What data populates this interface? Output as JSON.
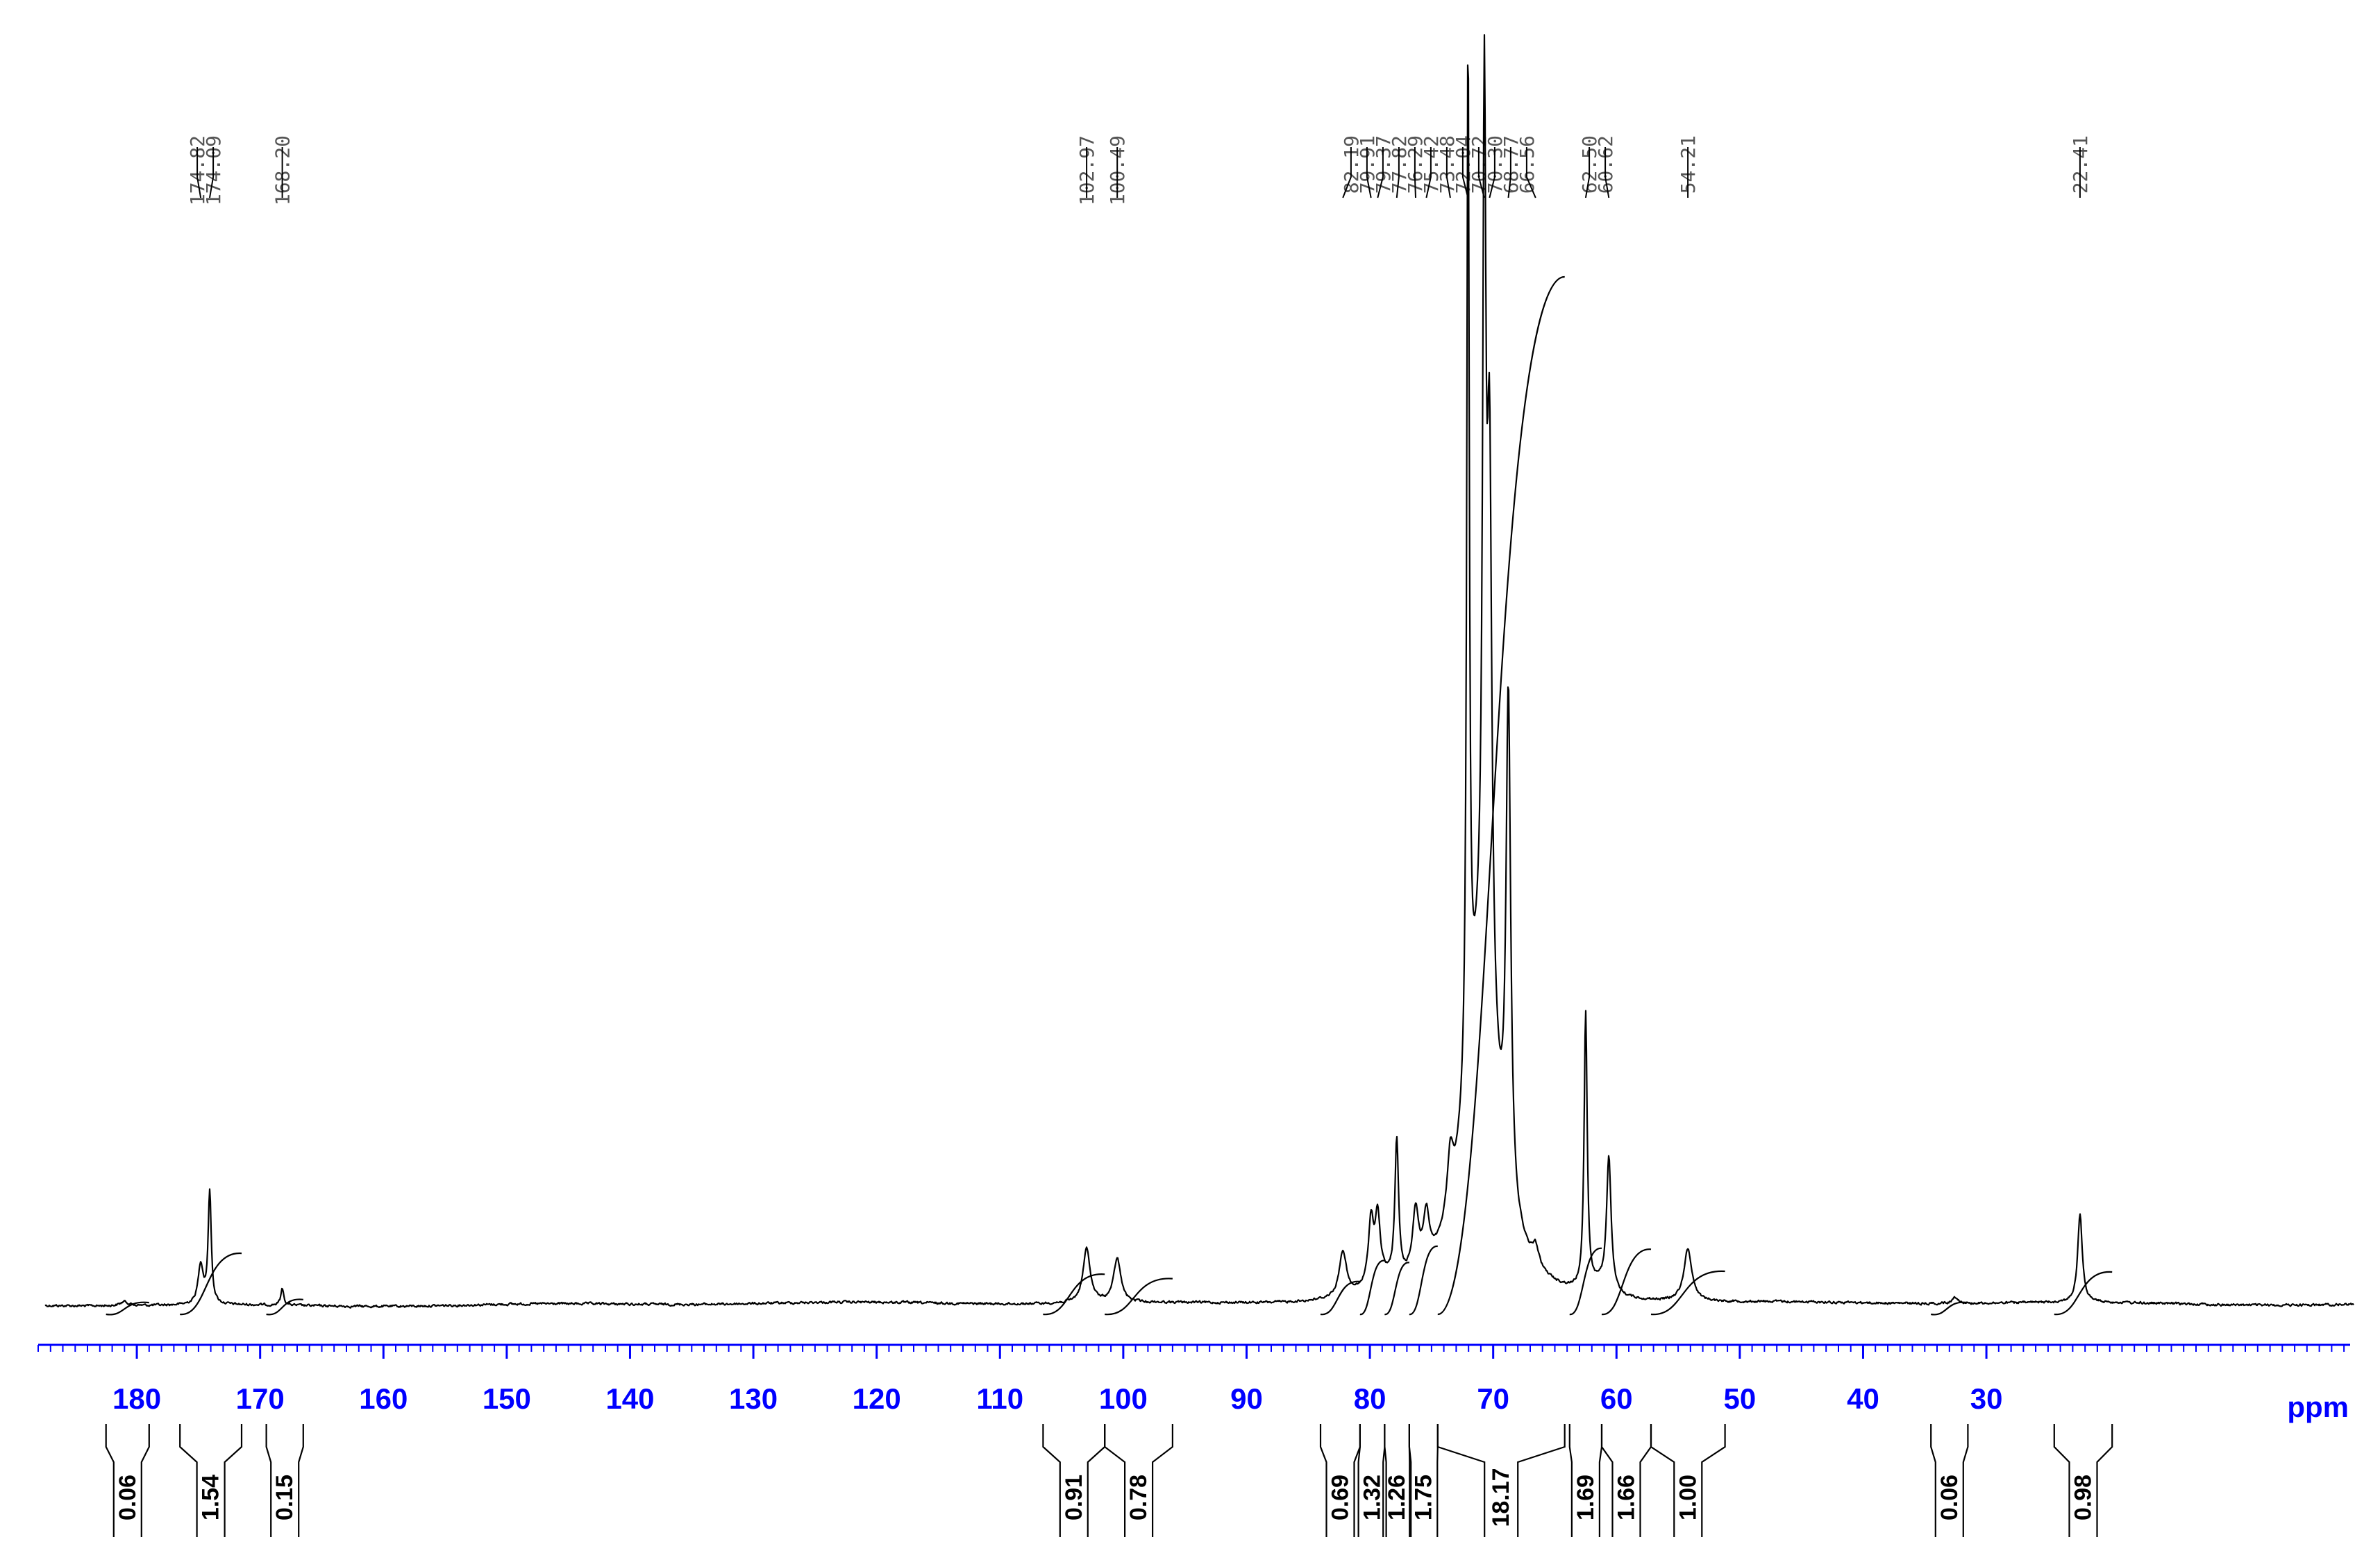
{
  "chart_data": {
    "type": "line",
    "xlabel": "ppm",
    "x_axis": {
      "reversed": true,
      "xlim": [
        188,
        0.5
      ],
      "major_ticks": [
        180,
        170,
        160,
        150,
        140,
        130,
        120,
        110,
        100,
        90,
        80,
        70,
        60,
        50,
        40,
        30
      ],
      "tick_labels": [
        "180",
        "170",
        "160",
        "150",
        "140",
        "130",
        "120",
        "110",
        "100",
        "90",
        "80",
        "70",
        "60",
        "50",
        "40",
        "30"
      ],
      "minor_step": 1
    },
    "peak_labels": [
      {
        "ppm": 174.82,
        "label": "174.82"
      },
      {
        "ppm": 174.09,
        "label": "174.09"
      },
      {
        "ppm": 168.2,
        "label": "168.20"
      },
      {
        "ppm": 102.97,
        "label": "102.97"
      },
      {
        "ppm": 100.49,
        "label": "100.49"
      },
      {
        "ppm": 82.19,
        "label": "82.19"
      },
      {
        "ppm": 79.91,
        "label": "79.91"
      },
      {
        "ppm": 79.37,
        "label": "79.37"
      },
      {
        "ppm": 77.82,
        "label": "77.82"
      },
      {
        "ppm": 76.29,
        "label": "76.29"
      },
      {
        "ppm": 75.42,
        "label": "75.42"
      },
      {
        "ppm": 73.48,
        "label": "73.48"
      },
      {
        "ppm": 72.04,
        "label": "72.04"
      },
      {
        "ppm": 70.72,
        "label": "70.72"
      },
      {
        "ppm": 70.3,
        "label": "70.30"
      },
      {
        "ppm": 68.77,
        "label": "68.77"
      },
      {
        "ppm": 66.56,
        "label": "66.56"
      },
      {
        "ppm": 62.5,
        "label": "62.50"
      },
      {
        "ppm": 60.62,
        "label": "60.62"
      },
      {
        "ppm": 54.21,
        "label": "54.21"
      },
      {
        "ppm": 22.41,
        "label": "22.41"
      }
    ],
    "peaks": [
      {
        "ppm": 181.0,
        "height": 0.004,
        "width": 0.4
      },
      {
        "ppm": 174.82,
        "height": 0.038,
        "width": 0.25
      },
      {
        "ppm": 174.09,
        "height": 0.108,
        "width": 0.15
      },
      {
        "ppm": 168.2,
        "height": 0.016,
        "width": 0.15
      },
      {
        "ppm": 102.97,
        "height": 0.052,
        "width": 0.35
      },
      {
        "ppm": 100.49,
        "height": 0.042,
        "width": 0.35
      },
      {
        "ppm": 82.19,
        "height": 0.044,
        "width": 0.35
      },
      {
        "ppm": 79.91,
        "height": 0.06,
        "width": 0.25
      },
      {
        "ppm": 79.37,
        "height": 0.06,
        "width": 0.25
      },
      {
        "ppm": 77.82,
        "height": 0.132,
        "width": 0.18
      },
      {
        "ppm": 76.29,
        "height": 0.06,
        "width": 0.3
      },
      {
        "ppm": 75.42,
        "height": 0.048,
        "width": 0.3
      },
      {
        "ppm": 73.48,
        "height": 0.055,
        "width": 0.3
      },
      {
        "ppm": 72.04,
        "height": 1.0,
        "width": 0.12
      },
      {
        "ppm": 70.72,
        "height": 0.8,
        "width": 0.16
      },
      {
        "ppm": 70.3,
        "height": 0.52,
        "width": 0.22
      },
      {
        "ppm": 68.77,
        "height": 0.48,
        "width": 0.22
      },
      {
        "ppm": 66.56,
        "height": 0.018,
        "width": 0.3
      },
      {
        "ppm": 62.5,
        "height": 0.265,
        "width": 0.15
      },
      {
        "ppm": 60.62,
        "height": 0.13,
        "width": 0.22
      },
      {
        "ppm": 54.21,
        "height": 0.05,
        "width": 0.4
      },
      {
        "ppm": 32.5,
        "height": 0.006,
        "width": 0.3
      },
      {
        "ppm": 22.41,
        "height": 0.085,
        "width": 0.22
      }
    ],
    "integrals": [
      {
        "from": 182.5,
        "to": 179.0,
        "value": 0.06,
        "label": "0.06"
      },
      {
        "from": 176.5,
        "to": 171.5,
        "value": 1.54,
        "label": "1.54"
      },
      {
        "from": 169.5,
        "to": 166.5,
        "value": 0.15,
        "label": "0.15"
      },
      {
        "from": 106.5,
        "to": 101.5,
        "value": 0.91,
        "label": "0.91"
      },
      {
        "from": 101.5,
        "to": 96.0,
        "value": 0.78,
        "label": "0.78"
      },
      {
        "from": 84.0,
        "to": 80.8,
        "value": 0.69,
        "label": "0.69"
      },
      {
        "from": 80.8,
        "to": 78.8,
        "value": 1.32,
        "label": "1.32"
      },
      {
        "from": 78.8,
        "to": 76.8,
        "value": 1.26,
        "label": "1.26"
      },
      {
        "from": 76.8,
        "to": 74.5,
        "value": 1.75,
        "label": "1.75"
      },
      {
        "from": 74.5,
        "to": 64.2,
        "value": 18.17,
        "label": "18.17"
      },
      {
        "from": 63.8,
        "to": 61.2,
        "value": 1.69,
        "label": "1.69"
      },
      {
        "from": 61.2,
        "to": 57.2,
        "value": 1.66,
        "label": "1.66"
      },
      {
        "from": 57.2,
        "to": 51.2,
        "value": 1.0,
        "label": "1.00"
      },
      {
        "from": 34.5,
        "to": 31.5,
        "value": 0.06,
        "label": "0.06"
      },
      {
        "from": 24.5,
        "to": 19.8,
        "value": 0.98,
        "label": "0.98"
      }
    ],
    "colors": {
      "axis": "#0000ff",
      "trace": "#000000",
      "peak_label": "#555555"
    },
    "grid": false
  }
}
